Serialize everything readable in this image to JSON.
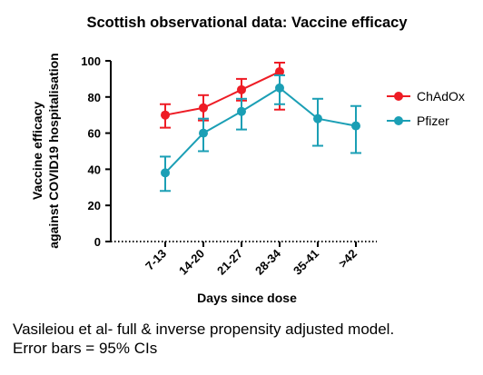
{
  "chart_data": {
    "type": "line",
    "title": "Scottish observational data: Vaccine efficacy",
    "ylabel_lines": [
      "Vaccine efficacy",
      "against COVID19 hospitalisation"
    ],
    "xlabel": "Days since dose",
    "categories": [
      "7-13",
      "14-20",
      "21-27",
      "28-34",
      "35-41",
      ">42"
    ],
    "ylim": [
      0,
      100
    ],
    "yticks": [
      0,
      20,
      40,
      60,
      80,
      100
    ],
    "legend_position": "right",
    "series": [
      {
        "name": "ChAdOx",
        "color": "#ee1c25",
        "values": [
          70,
          74,
          84,
          94,
          null,
          null
        ],
        "ci_low": [
          63,
          67,
          78,
          73,
          null,
          null
        ],
        "ci_high": [
          76,
          81,
          90,
          99,
          null,
          null
        ]
      },
      {
        "name": "Pfizer",
        "color": "#1b9fb5",
        "values": [
          38,
          60,
          72,
          85,
          68,
          64
        ],
        "ci_low": [
          28,
          50,
          62,
          76,
          53,
          49
        ],
        "ci_high": [
          47,
          68,
          79,
          92,
          79,
          75
        ]
      }
    ]
  },
  "caption": {
    "line1": "Vasileiou et al- full & inverse propensity adjusted model.",
    "line2": "Error bars = 95% CIs"
  }
}
